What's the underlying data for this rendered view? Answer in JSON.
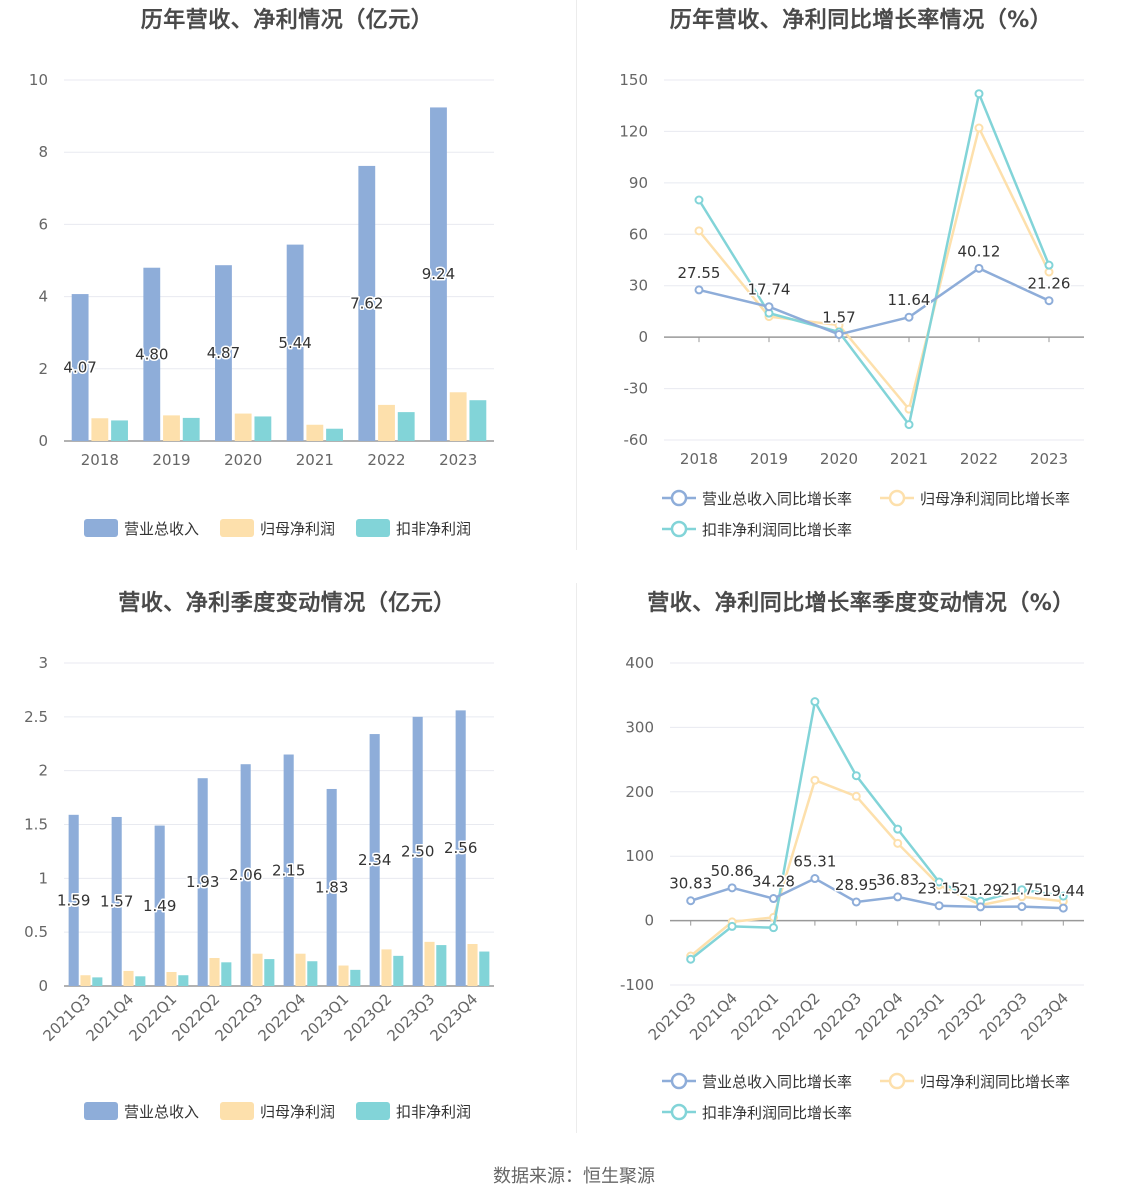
{
  "panels": {
    "p1": {
      "title": "历年营收、净利情况（亿元）"
    },
    "p2": {
      "title": "历年营收、净利同比增长率情况（%）"
    },
    "p3": {
      "title": "营收、净利季度变动情况（亿元）"
    },
    "p4": {
      "title": "营收、净利同比增长率季度变动情况（%）"
    }
  },
  "source": "数据来源：恒生聚源",
  "colors": {
    "revenue": "#8eadd9",
    "net_profit": "#fde0ac",
    "deducted_profit": "#82d4d8"
  },
  "chart_data": [
    {
      "type": "bar",
      "title": "历年营收、净利情况（亿元）",
      "categories": [
        "2018",
        "2019",
        "2020",
        "2021",
        "2022",
        "2023"
      ],
      "ylim": [
        0,
        10
      ],
      "yticks": [
        0,
        2,
        4,
        6,
        8,
        10
      ],
      "grid": true,
      "legend": "bottom",
      "series": [
        {
          "name": "营业总收入",
          "values": [
            4.07,
            4.8,
            4.87,
            5.44,
            7.62,
            9.24
          ],
          "labels": [
            "4.07",
            "4.80",
            "4.87",
            "5.44",
            "7.62",
            "9.24"
          ]
        },
        {
          "name": "归母净利润",
          "values": [
            0.63,
            0.71,
            0.76,
            0.45,
            1.0,
            1.35
          ]
        },
        {
          "name": "扣非净利润",
          "values": [
            0.57,
            0.64,
            0.68,
            0.34,
            0.8,
            1.13
          ]
        }
      ]
    },
    {
      "type": "line",
      "title": "历年营收、净利同比增长率情况（%）",
      "categories": [
        "2018",
        "2019",
        "2020",
        "2021",
        "2022",
        "2023"
      ],
      "ylim": [
        -60,
        150
      ],
      "yticks": [
        -60,
        -30,
        0,
        30,
        60,
        90,
        120,
        150
      ],
      "grid": true,
      "legend": "bottom",
      "series": [
        {
          "name": "营业总收入同比增长率",
          "values": [
            27.55,
            17.74,
            1.57,
            11.64,
            40.12,
            21.26
          ],
          "labels": [
            "27.55",
            "17.74",
            "1.57",
            "11.64",
            "40.12",
            "21.26"
          ]
        },
        {
          "name": "归母净利润同比增长率",
          "values": [
            62,
            12,
            7,
            -42,
            122,
            38
          ]
        },
        {
          "name": "扣非净利润同比增长率",
          "values": [
            80,
            14,
            3,
            -51,
            142,
            42
          ]
        }
      ]
    },
    {
      "type": "bar",
      "title": "营收、净利季度变动情况（亿元）",
      "categories": [
        "2021Q3",
        "2021Q4",
        "2022Q1",
        "2022Q2",
        "2022Q3",
        "2022Q4",
        "2023Q1",
        "2023Q2",
        "2023Q3",
        "2023Q4"
      ],
      "ylim": [
        0,
        3
      ],
      "yticks": [
        0,
        0.5,
        1,
        1.5,
        2,
        2.5,
        3
      ],
      "grid": true,
      "legend": "bottom",
      "series": [
        {
          "name": "营业总收入",
          "values": [
            1.59,
            1.57,
            1.49,
            1.93,
            2.06,
            2.15,
            1.83,
            2.34,
            2.5,
            2.56
          ],
          "labels": [
            "1.59",
            "1.57",
            "1.49",
            "1.93",
            "2.06",
            "2.15",
            "1.83",
            "2.34",
            "2.50",
            "2.56"
          ]
        },
        {
          "name": "归母净利润",
          "values": [
            0.1,
            0.14,
            0.13,
            0.26,
            0.3,
            0.3,
            0.19,
            0.34,
            0.41,
            0.39
          ]
        },
        {
          "name": "扣非净利润",
          "values": [
            0.08,
            0.09,
            0.1,
            0.22,
            0.25,
            0.23,
            0.15,
            0.28,
            0.38,
            0.32
          ]
        }
      ]
    },
    {
      "type": "line",
      "title": "营收、净利同比增长率季度变动情况（%）",
      "categories": [
        "2021Q3",
        "2021Q4",
        "2022Q1",
        "2022Q2",
        "2022Q3",
        "2022Q4",
        "2023Q1",
        "2023Q2",
        "2023Q3",
        "2023Q4"
      ],
      "ylim": [
        -100,
        400
      ],
      "yticks": [
        -100,
        0,
        100,
        200,
        300,
        400
      ],
      "grid": true,
      "legend": "bottom",
      "series": [
        {
          "name": "营业总收入同比增长率",
          "values": [
            30.83,
            50.86,
            34.28,
            65.31,
            28.95,
            36.83,
            23.15,
            21.29,
            21.75,
            19.44
          ],
          "labels": [
            "30.83",
            "50.86",
            "34.28",
            "65.31",
            "28.95",
            "36.83",
            "23.15",
            "21.29",
            "21.75",
            "19.44"
          ]
        },
        {
          "name": "归母净利润同比增长率",
          "values": [
            -55,
            -2,
            5,
            218,
            193,
            120,
            55,
            24,
            37,
            30
          ]
        },
        {
          "name": "扣非净利润同比增长率",
          "values": [
            -60,
            -9,
            -11,
            340,
            225,
            142,
            60,
            30,
            48,
            38
          ]
        }
      ]
    }
  ]
}
